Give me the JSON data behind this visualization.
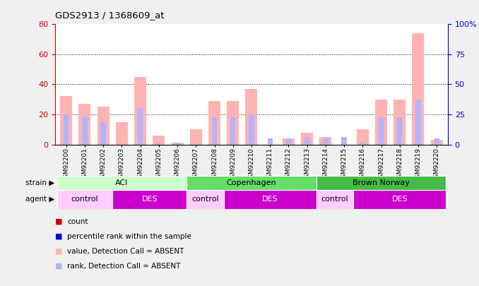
{
  "title": "GDS2913 / 1368609_at",
  "samples": [
    "GSM92200",
    "GSM92201",
    "GSM92202",
    "GSM92203",
    "GSM92204",
    "GSM92205",
    "GSM92206",
    "GSM92207",
    "GSM92208",
    "GSM92209",
    "GSM92210",
    "GSM92211",
    "GSM92212",
    "GSM92213",
    "GSM92214",
    "GSM92215",
    "GSM92216",
    "GSM92217",
    "GSM92218",
    "GSM92219",
    "GSM92220"
  ],
  "pink_values": [
    32,
    27,
    25,
    15,
    45,
    6,
    1,
    10,
    29,
    29,
    37,
    0,
    4,
    8,
    5,
    0,
    10,
    30,
    30,
    74,
    3
  ],
  "blue_values": [
    20,
    18,
    15,
    0,
    24,
    1,
    1,
    0,
    18,
    18,
    20,
    4,
    4,
    5,
    4,
    5,
    1,
    18,
    18,
    30,
    4
  ],
  "ylim_left": [
    0,
    80
  ],
  "ylim_right": [
    0,
    100
  ],
  "yticks_left": [
    0,
    20,
    40,
    60,
    80
  ],
  "ytick_labels_right": [
    "0",
    "25",
    "50",
    "75",
    "100%"
  ],
  "grid_values": [
    20,
    40,
    60
  ],
  "strain_groups": [
    {
      "label": "ACI",
      "start": 0,
      "end": 6
    },
    {
      "label": "Copenhagen",
      "start": 7,
      "end": 13
    },
    {
      "label": "Brown Norway",
      "start": 14,
      "end": 20
    }
  ],
  "agent_groups": [
    {
      "label": "control",
      "start": 0,
      "end": 2
    },
    {
      "label": "DES",
      "start": 3,
      "end": 6
    },
    {
      "label": "control",
      "start": 7,
      "end": 8
    },
    {
      "label": "DES",
      "start": 9,
      "end": 13
    },
    {
      "label": "control",
      "start": 14,
      "end": 15
    },
    {
      "label": "DES",
      "start": 16,
      "end": 20
    }
  ],
  "strain_colors": {
    "ACI": "#ccffcc",
    "Copenhagen": "#66dd66",
    "Brown Norway": "#44bb44"
  },
  "agent_colors": {
    "control": "#ffccff",
    "DES": "#cc00cc"
  },
  "agent_text_colors": {
    "control": "black",
    "DES": "white"
  },
  "pink_color": "#ffb3b3",
  "blue_color": "#b3b3ff",
  "bg_color": "#f0f0f0",
  "plot_bg": "#ffffff",
  "left_axis_color": "#cc0000",
  "right_axis_color": "#0000cc",
  "legend_colors": [
    "#cc0000",
    "#0000cc",
    "#ffb3b3",
    "#b3b3ff"
  ],
  "legend_labels": [
    "count",
    "percentile rank within the sample",
    "value, Detection Call = ABSENT",
    "rank, Detection Call = ABSENT"
  ]
}
